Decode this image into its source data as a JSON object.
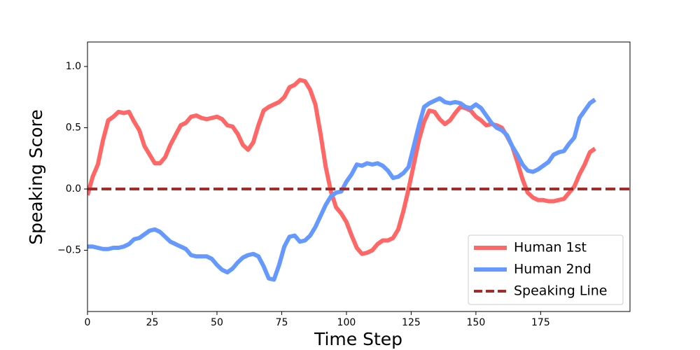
{
  "chart_data": {
    "type": "line",
    "xlabel": "Time Step",
    "ylabel": "Speaking Score",
    "x": [
      0,
      2,
      4,
      6,
      8,
      10,
      12,
      14,
      16,
      18,
      20,
      22,
      24,
      26,
      28,
      30,
      32,
      34,
      36,
      38,
      40,
      42,
      44,
      46,
      48,
      50,
      52,
      54,
      56,
      58,
      60,
      62,
      64,
      66,
      68,
      70,
      72,
      74,
      76,
      78,
      80,
      82,
      84,
      86,
      88,
      90,
      92,
      94,
      96,
      98,
      100,
      102,
      104,
      106,
      108,
      110,
      112,
      114,
      116,
      118,
      120,
      122,
      124,
      126,
      128,
      130,
      132,
      134,
      136,
      138,
      140,
      142,
      144,
      146,
      148,
      150,
      152,
      154,
      156,
      158,
      160,
      162,
      164,
      166,
      168,
      170,
      172,
      174,
      176,
      178,
      180,
      182,
      184,
      186,
      188,
      190,
      192,
      194,
      196
    ],
    "series": [
      {
        "name": "Human 1st",
        "color": "#ff6666",
        "values": [
          -0.05,
          0.1,
          0.2,
          0.4,
          0.56,
          0.59,
          0.63,
          0.62,
          0.63,
          0.55,
          0.48,
          0.35,
          0.28,
          0.21,
          0.21,
          0.26,
          0.36,
          0.44,
          0.52,
          0.54,
          0.59,
          0.6,
          0.58,
          0.57,
          0.58,
          0.59,
          0.57,
          0.52,
          0.51,
          0.45,
          0.36,
          0.32,
          0.38,
          0.52,
          0.64,
          0.67,
          0.69,
          0.71,
          0.75,
          0.83,
          0.85,
          0.89,
          0.88,
          0.81,
          0.69,
          0.45,
          0.18,
          -0.02,
          -0.15,
          -0.2,
          -0.27,
          -0.38,
          -0.48,
          -0.53,
          -0.52,
          -0.5,
          -0.45,
          -0.42,
          -0.42,
          -0.4,
          -0.33,
          -0.18,
          0.0,
          0.2,
          0.4,
          0.55,
          0.64,
          0.63,
          0.57,
          0.53,
          0.56,
          0.62,
          0.67,
          0.66,
          0.64,
          0.59,
          0.56,
          0.52,
          0.53,
          0.52,
          0.5,
          0.43,
          0.35,
          0.22,
          0.08,
          -0.03,
          -0.07,
          -0.09,
          -0.09,
          -0.1,
          -0.1,
          -0.09,
          -0.08,
          -0.03,
          0.02,
          0.12,
          0.2,
          0.3,
          0.33
        ]
      },
      {
        "name": "Human 2nd",
        "color": "#6699ff",
        "values": [
          -0.47,
          -0.47,
          -0.48,
          -0.49,
          -0.49,
          -0.48,
          -0.48,
          -0.47,
          -0.45,
          -0.41,
          -0.4,
          -0.37,
          -0.34,
          -0.33,
          -0.35,
          -0.39,
          -0.43,
          -0.45,
          -0.47,
          -0.49,
          -0.54,
          -0.55,
          -0.55,
          -0.55,
          -0.57,
          -0.62,
          -0.66,
          -0.68,
          -0.65,
          -0.6,
          -0.56,
          -0.54,
          -0.53,
          -0.55,
          -0.63,
          -0.73,
          -0.74,
          -0.62,
          -0.47,
          -0.39,
          -0.38,
          -0.43,
          -0.42,
          -0.38,
          -0.31,
          -0.22,
          -0.13,
          -0.06,
          -0.03,
          -0.02,
          0.06,
          0.12,
          0.2,
          0.19,
          0.21,
          0.2,
          0.21,
          0.19,
          0.15,
          0.09,
          0.1,
          0.13,
          0.18,
          0.35,
          0.52,
          0.67,
          0.7,
          0.72,
          0.74,
          0.71,
          0.7,
          0.71,
          0.7,
          0.67,
          0.66,
          0.69,
          0.66,
          0.6,
          0.54,
          0.5,
          0.48,
          0.44,
          0.35,
          0.28,
          0.2,
          0.15,
          0.14,
          0.16,
          0.19,
          0.22,
          0.28,
          0.3,
          0.31,
          0.37,
          0.42,
          0.58,
          0.64,
          0.7,
          0.73
        ]
      }
    ],
    "reference_line": {
      "name": "Speaking Line",
      "color": "#a52a2a",
      "y": 0
    },
    "xlim": [
      0,
      209.5
    ],
    "ylim": [
      -1.0,
      1.2
    ],
    "xticks": [
      0,
      25,
      50,
      75,
      100,
      125,
      150,
      175
    ],
    "yticks": [
      {
        "value": -0.5,
        "label": "−0.5"
      },
      {
        "value": 0.0,
        "label": "0.0"
      },
      {
        "value": 0.5,
        "label": "0.5"
      },
      {
        "value": 1.0,
        "label": "1.0"
      }
    ],
    "legend": "lower right"
  }
}
